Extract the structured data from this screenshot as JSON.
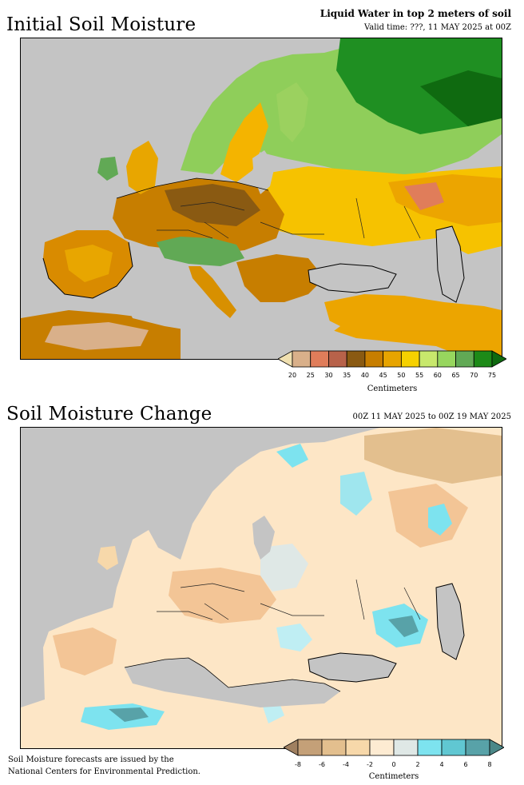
{
  "panel1": {
    "title": "Initial Soil Moisture",
    "header_title": "Liquid Water in top 2 meters of soil",
    "valid_time": "Valid time: ???, 11 MAY 2025 at 00Z",
    "colorbar": {
      "labels": [
        "20",
        "25",
        "30",
        "35",
        "40",
        "45",
        "50",
        "55",
        "60",
        "65",
        "70",
        "75"
      ],
      "colors": [
        "#f0e0b0",
        "#d9b08a",
        "#e07d5a",
        "#b8624a",
        "#8a5a12",
        "#c77e00",
        "#e7a400",
        "#f6d100",
        "#c8e86c",
        "#97d65e",
        "#61a955",
        "#1d8a18",
        "#0f6a10"
      ],
      "units": "Centimeters"
    }
  },
  "panel2": {
    "title": "Soil Moisture Change",
    "period": "00Z 11 MAY 2025 to 00Z 19 MAY 2025",
    "colorbar": {
      "labels": [
        "-8",
        "-6",
        "-4",
        "-2",
        "0",
        "2",
        "4",
        "6",
        "8"
      ],
      "colors": [
        "#a08060",
        "#c4a078",
        "#e3bf8e",
        "#f7d8aa",
        "#fdebd2",
        "#dfe8e6",
        "#7de3ef",
        "#60c7d2",
        "#58a2a8",
        "#4b8888"
      ],
      "units": "Centimeters"
    }
  },
  "footer": {
    "line1": "Soil Moisture forecasts are issued by the",
    "line2": "National Centers for Environmental Prediction."
  }
}
